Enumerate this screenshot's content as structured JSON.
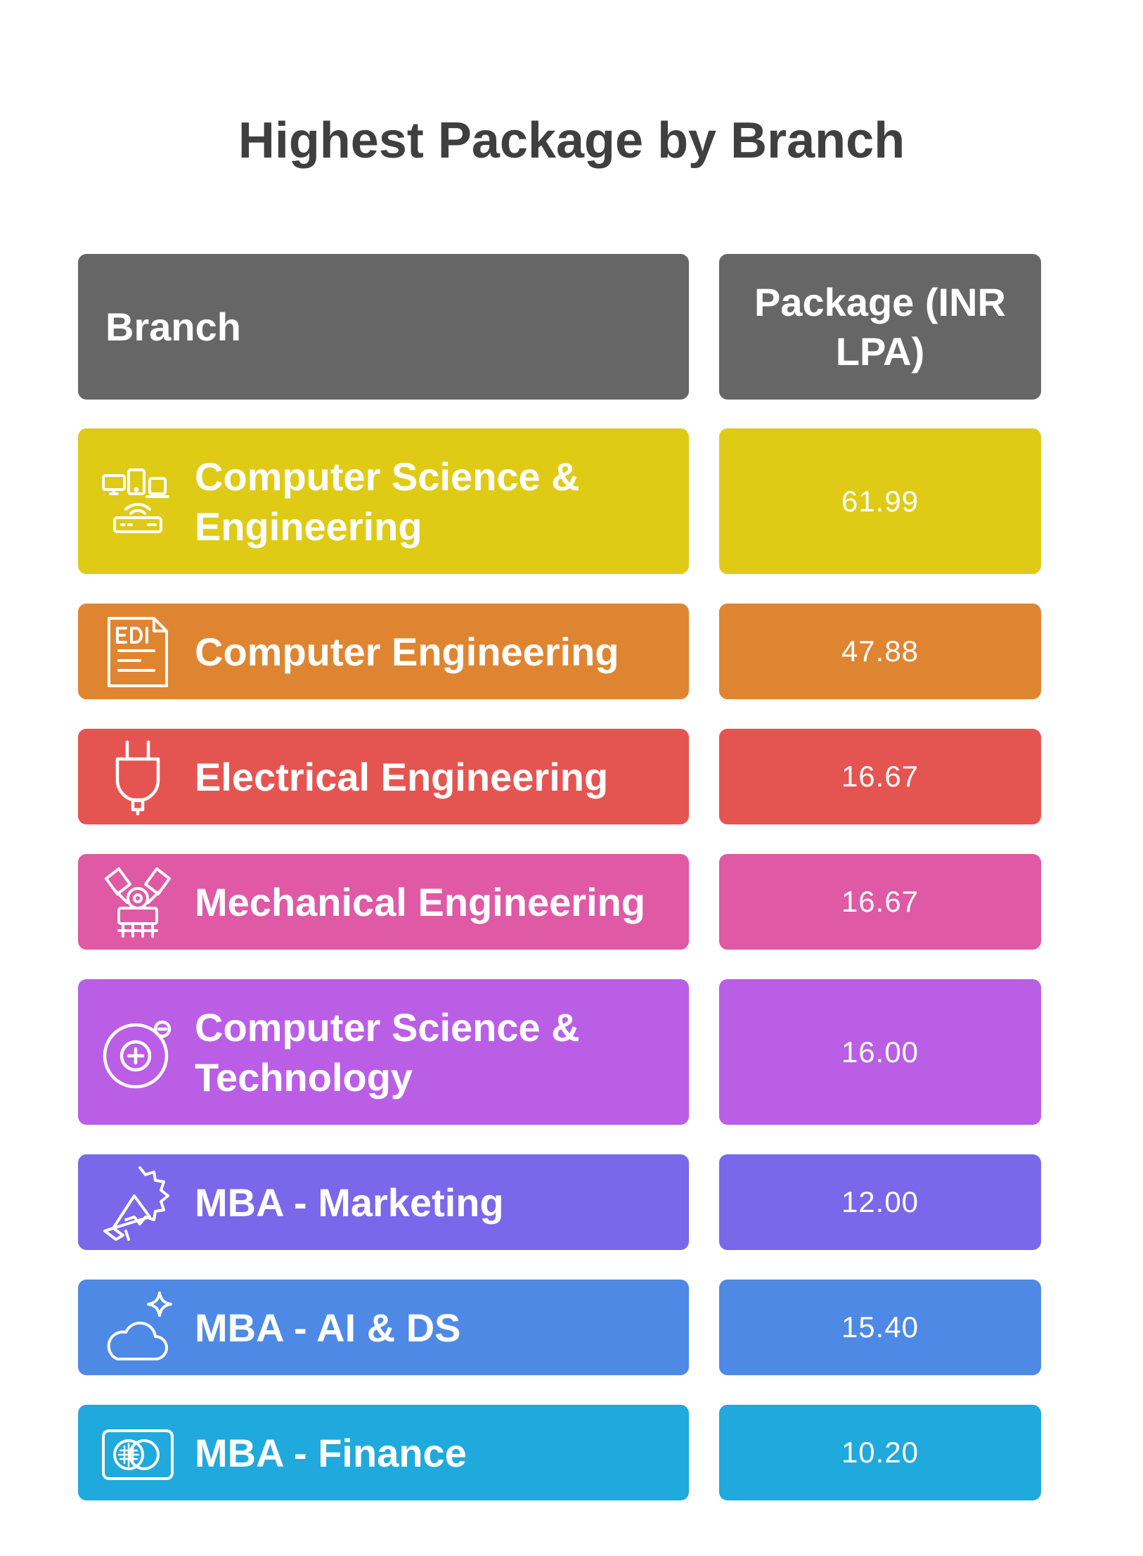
{
  "chart_data": {
    "type": "table",
    "title": "Highest Package by Branch",
    "columns": [
      "Branch",
      "Package (INR LPA)"
    ],
    "rows": [
      {
        "branch": "Computer Science & Engineering",
        "value": "61.99",
        "color": "#dfcb15",
        "icon": "devices-router-icon"
      },
      {
        "branch": "Computer Engineering",
        "value": "47.88",
        "color": "#df8531",
        "icon": "edi-document-icon"
      },
      {
        "branch": "Electrical Engineering",
        "value": "16.67",
        "color": "#e45552",
        "icon": "plug-icon"
      },
      {
        "branch": "Mechanical Engineering",
        "value": "16.67",
        "color": "#df59a5",
        "icon": "engine-icon"
      },
      {
        "branch": "Computer Science & Technology",
        "value": "16.00",
        "color": "#ba5fe5",
        "icon": "disc-icon"
      },
      {
        "branch": "MBA - Marketing",
        "value": "12.00",
        "color": "#7b67e9",
        "icon": "megaphone-icon"
      },
      {
        "branch": "MBA - AI & DS",
        "value": "15.40",
        "color": "#4e89e5",
        "icon": "cloud-sparkle-icon"
      },
      {
        "branch": "MBA - Finance",
        "value": "10.20",
        "color": "#20a9dc",
        "icon": "card-icon"
      }
    ]
  },
  "header_color": "#666666"
}
